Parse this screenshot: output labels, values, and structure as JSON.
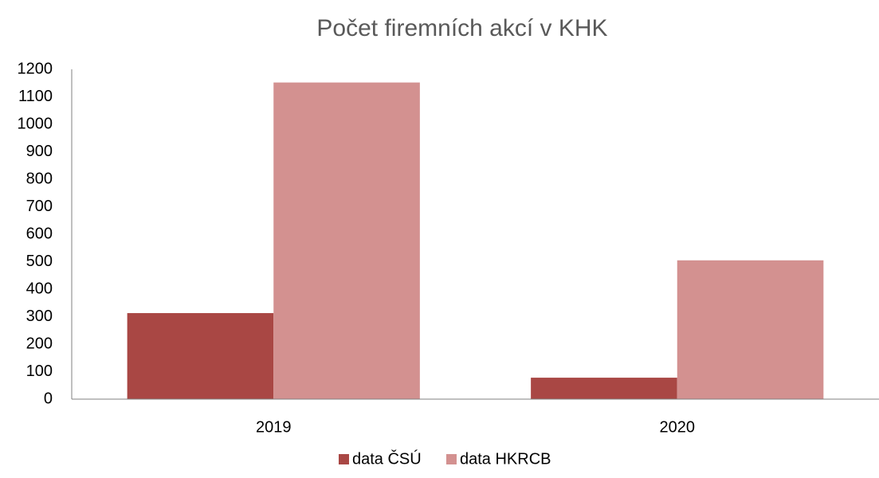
{
  "chart_data": {
    "type": "bar",
    "title": "Počet firemních akcí v KHK",
    "categories": [
      "2019",
      "2020"
    ],
    "series": [
      {
        "name": "data ČSÚ",
        "color": "#a94744",
        "values": [
          313,
          78
        ]
      },
      {
        "name": "data HKRCB",
        "color": "#d39190",
        "values": [
          1152,
          505
        ]
      }
    ],
    "ylim": [
      0,
      1200
    ],
    "yticks": [
      0,
      100,
      200,
      300,
      400,
      500,
      600,
      700,
      800,
      900,
      1000,
      1100,
      1200
    ],
    "grid": false,
    "legend": "bottom"
  }
}
